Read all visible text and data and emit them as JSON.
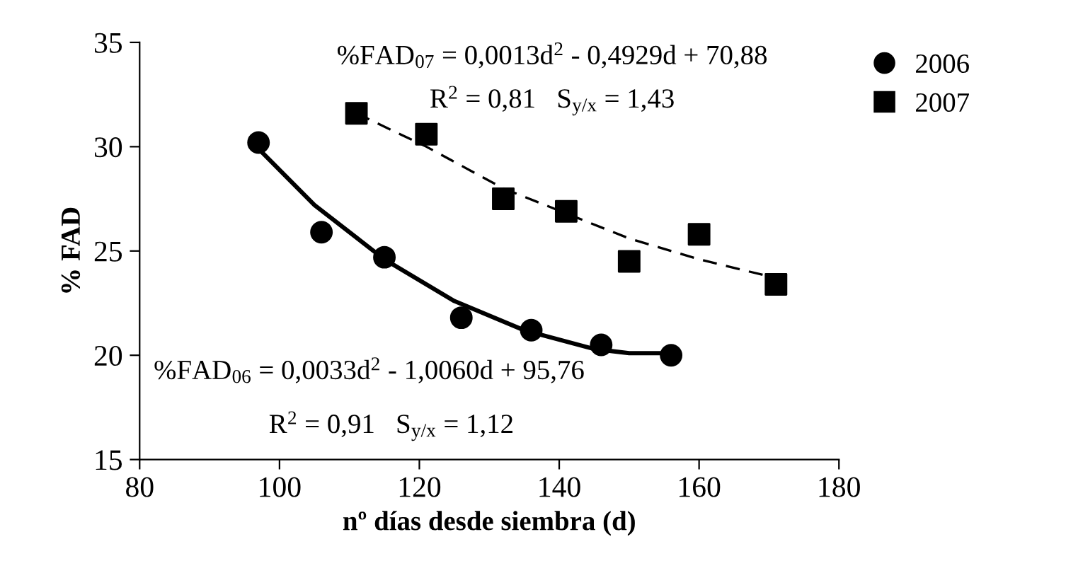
{
  "chart_data": {
    "type": "scatter",
    "xlabel": "nº días desde siembra (d)",
    "ylabel": "% FAD",
    "xlim": [
      80,
      180
    ],
    "xticks": [
      80,
      100,
      120,
      140,
      160,
      180
    ],
    "ylim": [
      15,
      35
    ],
    "yticks": [
      15,
      20,
      25,
      30,
      35
    ],
    "grid": false,
    "legend": "right",
    "series": [
      {
        "name": "2006",
        "marker": "circle",
        "color": "#000000",
        "x": [
          97,
          106,
          115,
          126,
          136,
          146,
          156
        ],
        "values": [
          30.2,
          25.9,
          24.7,
          21.8,
          21.2,
          20.5,
          20.0
        ]
      },
      {
        "name": "2007",
        "marker": "square",
        "color": "#000000",
        "x": [
          111,
          121,
          132,
          141,
          150,
          160,
          171
        ],
        "values": [
          31.6,
          30.6,
          27.5,
          26.9,
          24.5,
          25.8,
          23.4
        ]
      },
      {
        "type": "line",
        "line_style": "solid",
        "color": "#000000",
        "x": [
          97,
          105,
          115,
          125,
          135,
          145,
          150,
          156
        ],
        "values": [
          29.9,
          27.2,
          24.6,
          22.6,
          21.2,
          20.3,
          20.1,
          20.1
        ]
      },
      {
        "type": "line",
        "line_style": "dashed",
        "color": "#000000",
        "x": [
          111,
          121,
          132,
          141,
          150,
          160,
          171
        ],
        "values": [
          31.6,
          30.0,
          28.0,
          26.8,
          25.6,
          24.6,
          23.7
        ]
      }
    ],
    "annotations": [
      "%FAD$_{07}$ = 0,0013d$^{2}$ - 0,4929d + 70,88",
      "R$^{2}$ = 0,81   S$_{y/x}$ = 1,43",
      "%FAD$_{06}$ = 0,0033d$^{2}$ - 1,0060d + 95,76",
      "R$^{2}$ = 0,91   S$_{y/x}$ = 1,12"
    ]
  }
}
